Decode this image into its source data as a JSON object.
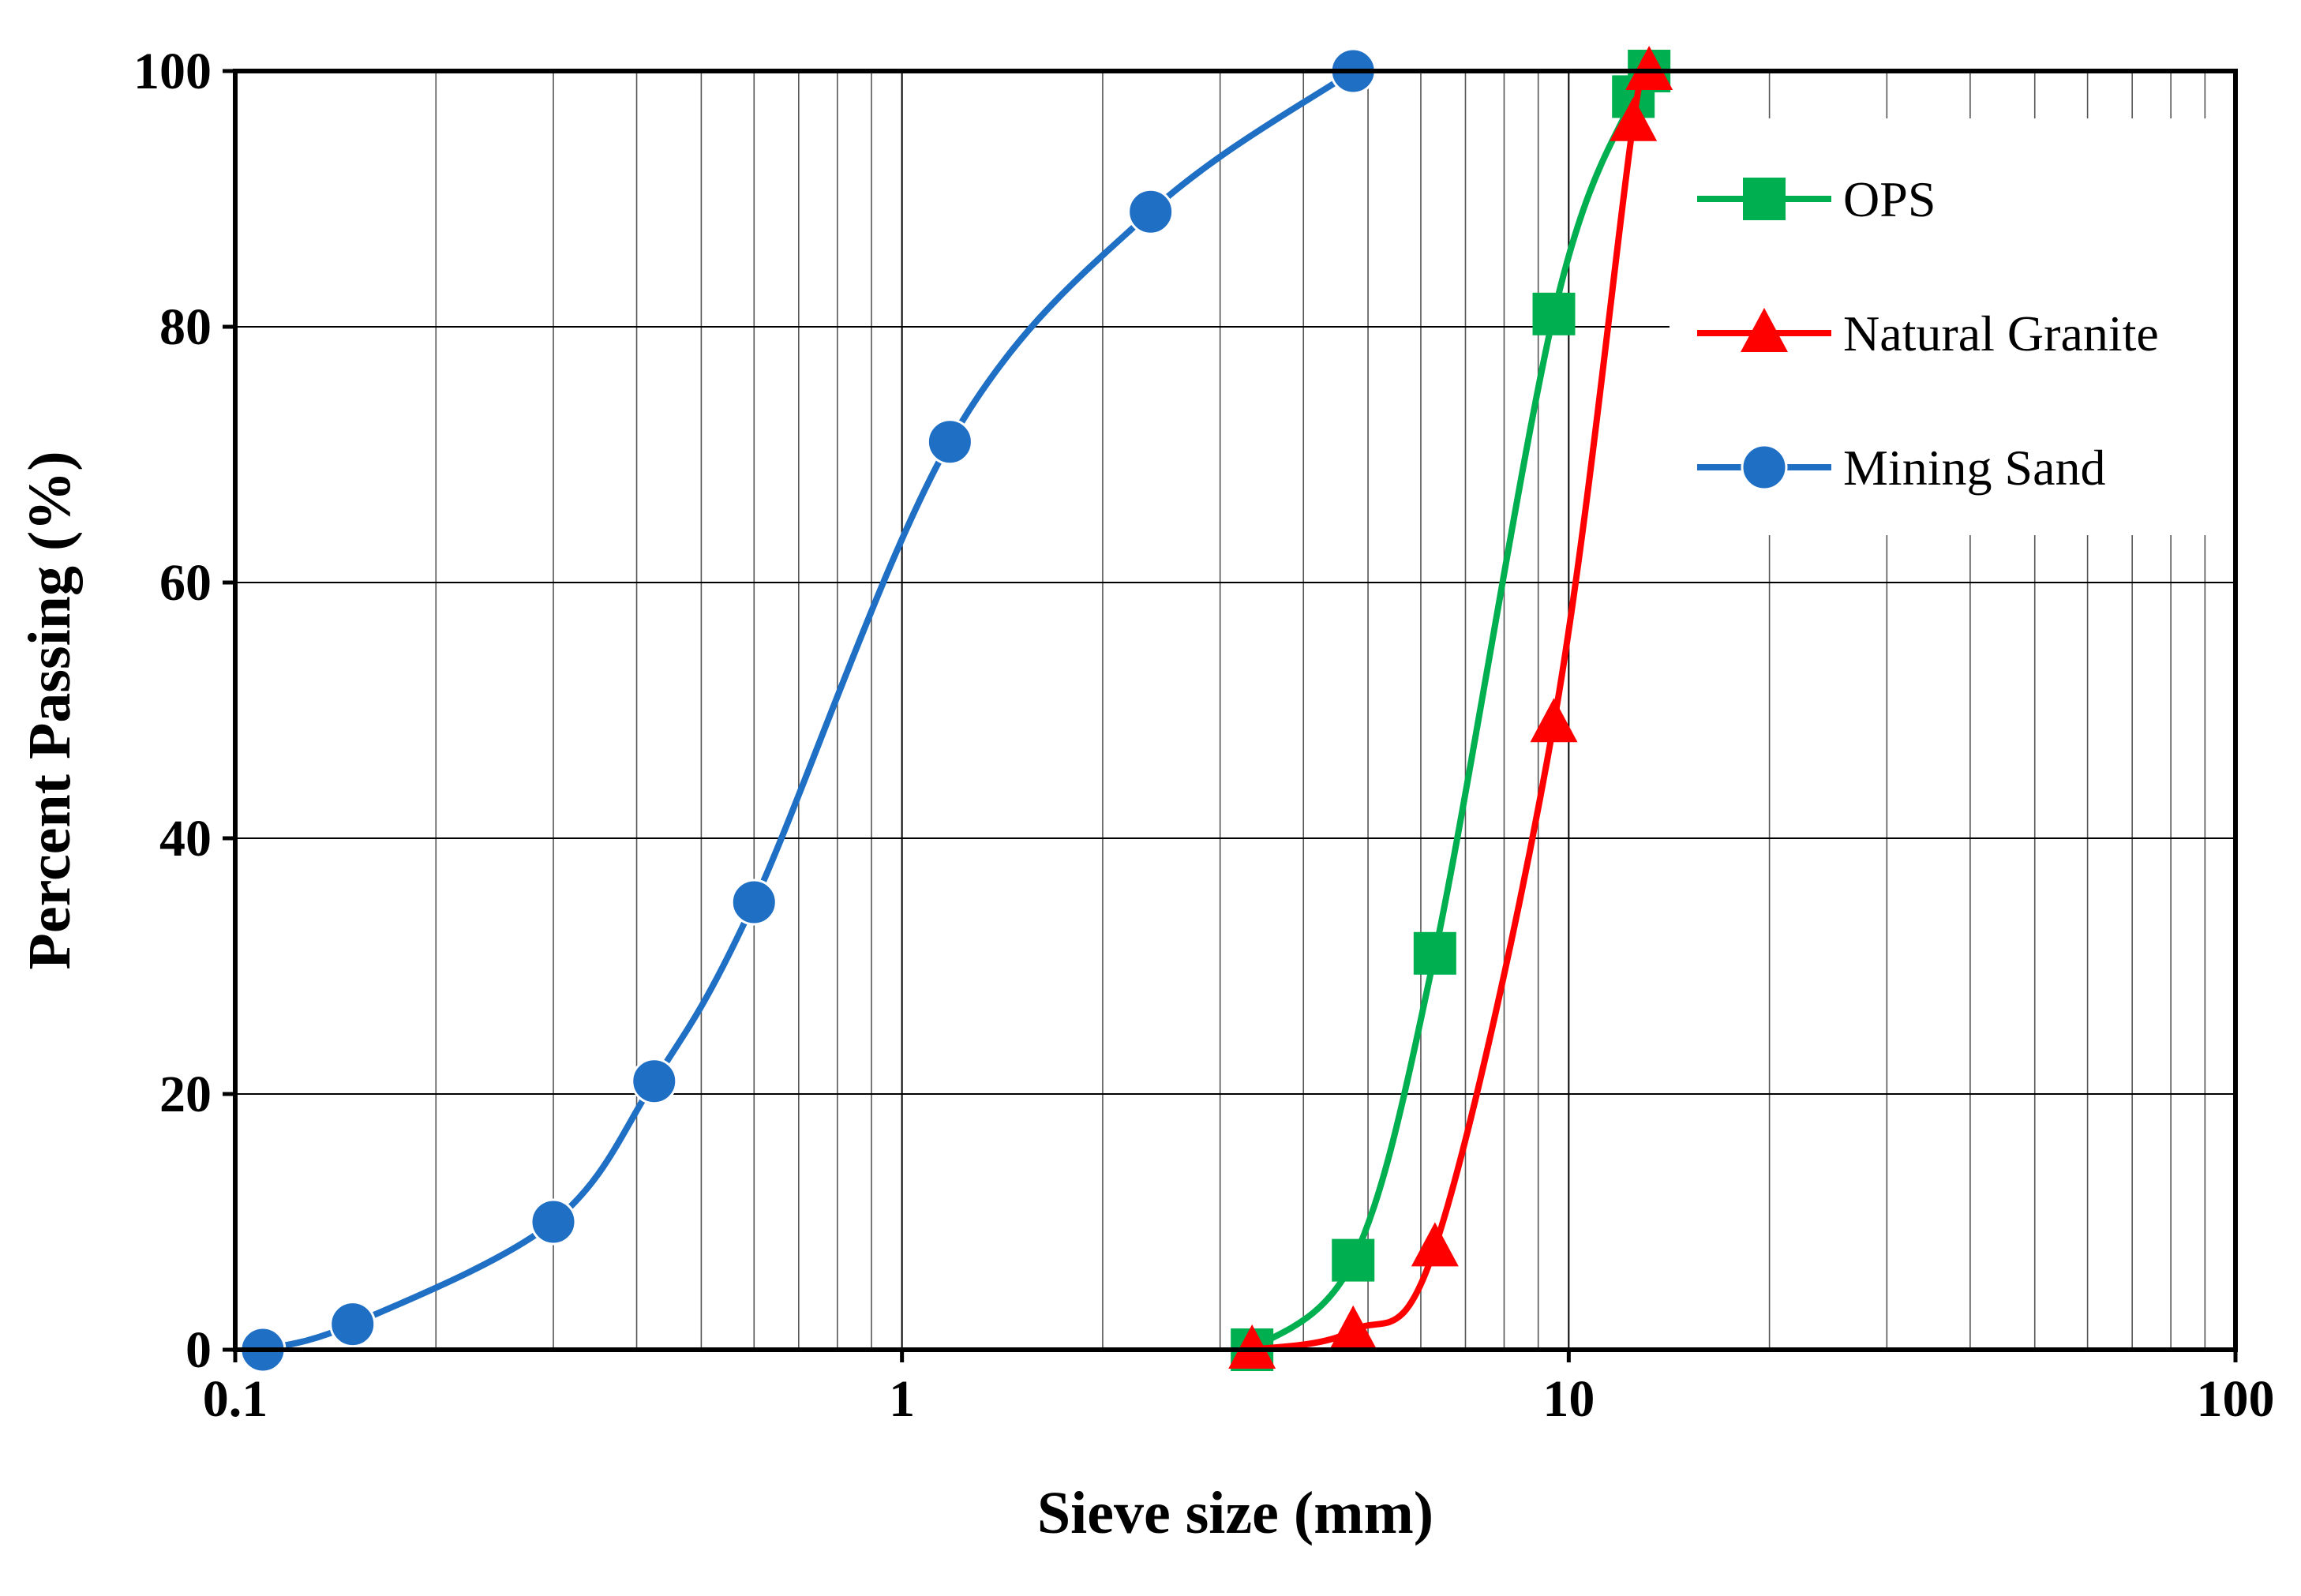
{
  "chart_data": {
    "type": "line",
    "title": "",
    "xlabel": "Sieve size (mm)",
    "ylabel": "Percent Passing (%)",
    "xscale": "log",
    "xlim": [
      0.1,
      100
    ],
    "ylim": [
      0,
      100
    ],
    "grid": true,
    "legend_position": "top-right",
    "x_ticks": [
      {
        "value": 0.1,
        "label": "0.1"
      },
      {
        "value": 1,
        "label": "1"
      },
      {
        "value": 10,
        "label": "10"
      },
      {
        "value": 100,
        "label": "100"
      }
    ],
    "y_ticks": [
      {
        "value": 0,
        "label": "0"
      },
      {
        "value": 20,
        "label": "20"
      },
      {
        "value": 40,
        "label": "40"
      },
      {
        "value": 60,
        "label": "60"
      },
      {
        "value": 80,
        "label": "80"
      },
      {
        "value": 100,
        "label": "100"
      }
    ],
    "series": [
      {
        "name": "OPS",
        "color": "#00b050",
        "marker": "square",
        "x": [
          3.35,
          4.75,
          6.3,
          9.5,
          12.5,
          13.2
        ],
        "y": [
          0,
          7,
          31,
          81,
          98,
          100
        ]
      },
      {
        "name": "Natural Granite",
        "color": "#ff0000",
        "marker": "triangle",
        "x": [
          3.35,
          4.75,
          6.3,
          9.5,
          12.5,
          13.2
        ],
        "y": [
          0,
          1.5,
          8,
          49,
          96,
          100
        ]
      },
      {
        "name": "Mining Sand",
        "color": "#1f6fc5",
        "marker": "circle",
        "x": [
          0.11,
          0.15,
          0.3,
          0.425,
          0.6,
          1.18,
          2.36,
          4.75
        ],
        "y": [
          0,
          2,
          10,
          21,
          35,
          71,
          89,
          100
        ]
      }
    ]
  }
}
